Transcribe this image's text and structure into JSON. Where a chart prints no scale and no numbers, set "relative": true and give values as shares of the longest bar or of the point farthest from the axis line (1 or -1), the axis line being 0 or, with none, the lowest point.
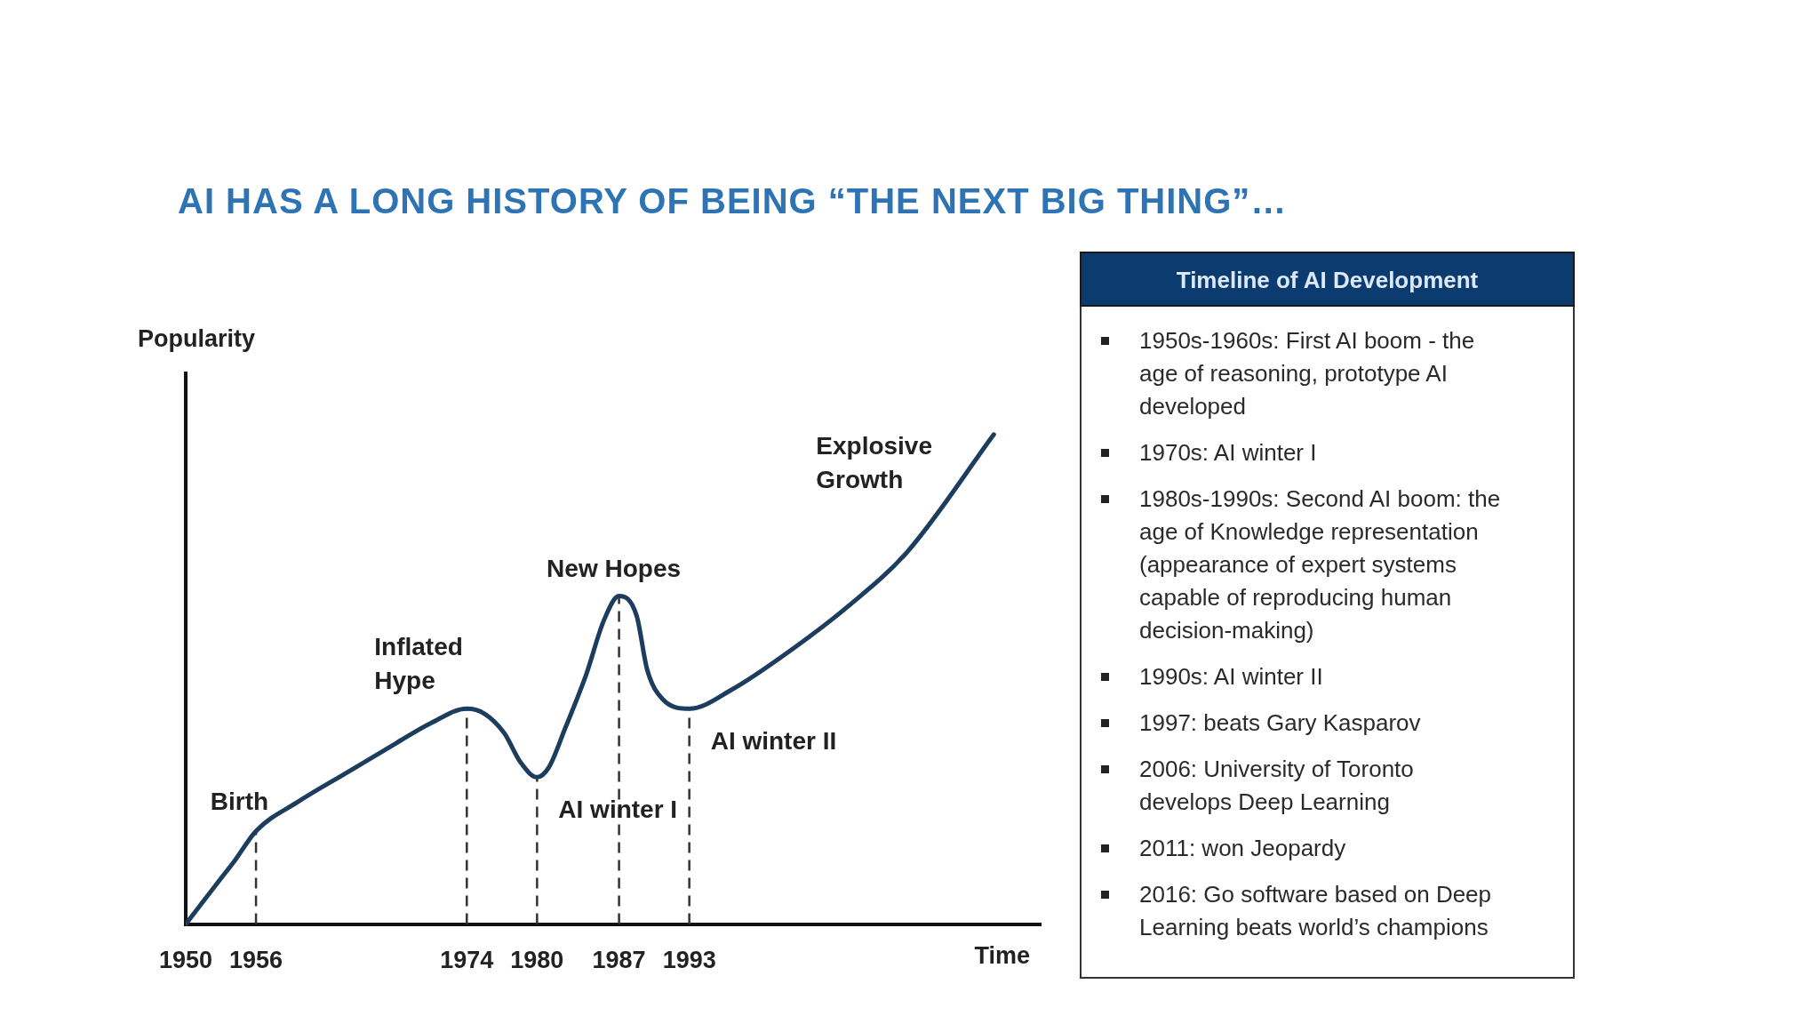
{
  "chart_data": [
    {
      "type": "line",
      "title": "AI HAS A LONG HISTORY OF BEING “THE NEXT BIG THING”…",
      "xlabel": "Time",
      "ylabel": "Popularity",
      "relative": true,
      "x": [
        1950,
        1952.9,
        1954.2,
        1956,
        1959.6,
        1963.8,
        1968,
        1970.9,
        1974,
        1975.5,
        1977.2,
        1978.6,
        1980,
        1981,
        1982.4,
        1984.2,
        1985.7,
        1987,
        1988.5,
        1989.4,
        1990.7,
        1993,
        1996.7,
        2001.7,
        2006.6,
        2011.6,
        2019
      ],
      "series": [
        {
          "color": "#1c3d5e",
          "values": [
            0,
            0.09,
            0.13,
            0.19,
            0.25,
            0.31,
            0.37,
            0.41,
            0.44,
            0.43,
            0.39,
            0.33,
            0.3,
            0.32,
            0.4,
            0.51,
            0.62,
            0.67,
            0.63,
            0.52,
            0.46,
            0.44,
            0.48,
            0.56,
            0.65,
            0.76,
            1
          ]
        }
      ],
      "xlim": [
        1950,
        2023
      ],
      "xticks": [
        1950,
        1956,
        1974,
        1980,
        1987,
        1993
      ],
      "ref_lines": [
        {
          "axis": "x",
          "value": 1956,
          "color": "#333333",
          "line_style": "dashed"
        },
        {
          "axis": "x",
          "value": 1974,
          "color": "#333333",
          "line_style": "dashed"
        },
        {
          "axis": "x",
          "value": 1980,
          "color": "#333333",
          "line_style": "dashed"
        },
        {
          "axis": "x",
          "value": 1987,
          "color": "#333333",
          "line_style": "dashed"
        },
        {
          "axis": "x",
          "value": 1993,
          "color": "#333333",
          "line_style": "dashed"
        }
      ],
      "annotations": [
        {
          "text": "Birth",
          "x": 1956,
          "y": 0.19
        },
        {
          "text": "Inflated\nHype",
          "x": 1974,
          "y": 0.44
        },
        {
          "text": "AI winter I",
          "x": 1980,
          "y": 0.3
        },
        {
          "text": "New Hopes",
          "x": 1987,
          "y": 0.67
        },
        {
          "text": "AI winter II",
          "x": 1993,
          "y": 0.44
        },
        {
          "text": "Explosive\nGrowth",
          "x": 2019,
          "y": 1
        }
      ]
    },
    {
      "type": "other",
      "title": "Timeline of AI Development",
      "annotations": [
        "1950s-1960s: First AI boom - the age of reasoning, prototype AI developed",
        "1970s: AI winter I",
        "1980s-1990s: Second AI boom: the age of Knowledge representation (appearance of expert systems capable of reproducing human decision-making)",
        "1990s: AI winter II",
        "1997: beats Gary Kasparov",
        "2006: University of Toronto develops Deep Learning",
        "2011: won Jeopardy",
        "2016: Go software based on Deep Learning beats world’s champions"
      ]
    }
  ]
}
